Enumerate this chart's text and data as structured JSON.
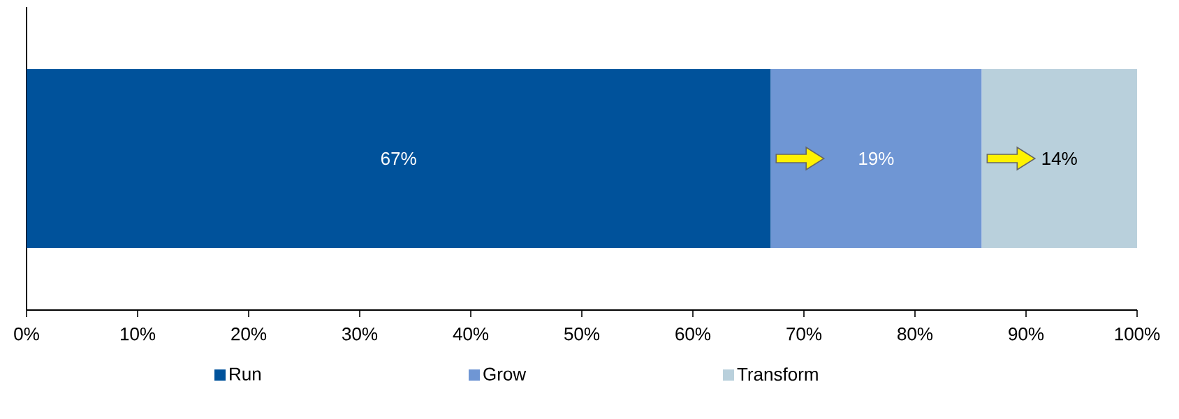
{
  "chart_data": {
    "type": "bar",
    "orientation": "horizontal",
    "stacked": true,
    "categories": [
      null
    ],
    "series": [
      {
        "name": "Run",
        "color": "#00529b",
        "values": [
          67
        ],
        "value_labels": [
          "67%"
        ]
      },
      {
        "name": "Grow",
        "color": "#6f96d4",
        "values": [
          19
        ],
        "value_labels": [
          "19%"
        ]
      },
      {
        "name": "Transform",
        "color": "#b9d0dc",
        "values": [
          14
        ],
        "value_labels": [
          "14%"
        ]
      }
    ],
    "xlim": [
      0,
      100
    ],
    "xticks": [
      {
        "value": 0,
        "label": "0%"
      },
      {
        "value": 10,
        "label": "10%"
      },
      {
        "value": 20,
        "label": "20%"
      },
      {
        "value": 30,
        "label": "30%"
      },
      {
        "value": 40,
        "label": "40%"
      },
      {
        "value": 50,
        "label": "50%"
      },
      {
        "value": 60,
        "label": "60%"
      },
      {
        "value": 70,
        "label": "70%"
      },
      {
        "value": 80,
        "label": "80%"
      },
      {
        "value": 90,
        "label": "90%"
      },
      {
        "value": 100,
        "label": "100%"
      }
    ],
    "grid": false,
    "legend": "bottom"
  }
}
